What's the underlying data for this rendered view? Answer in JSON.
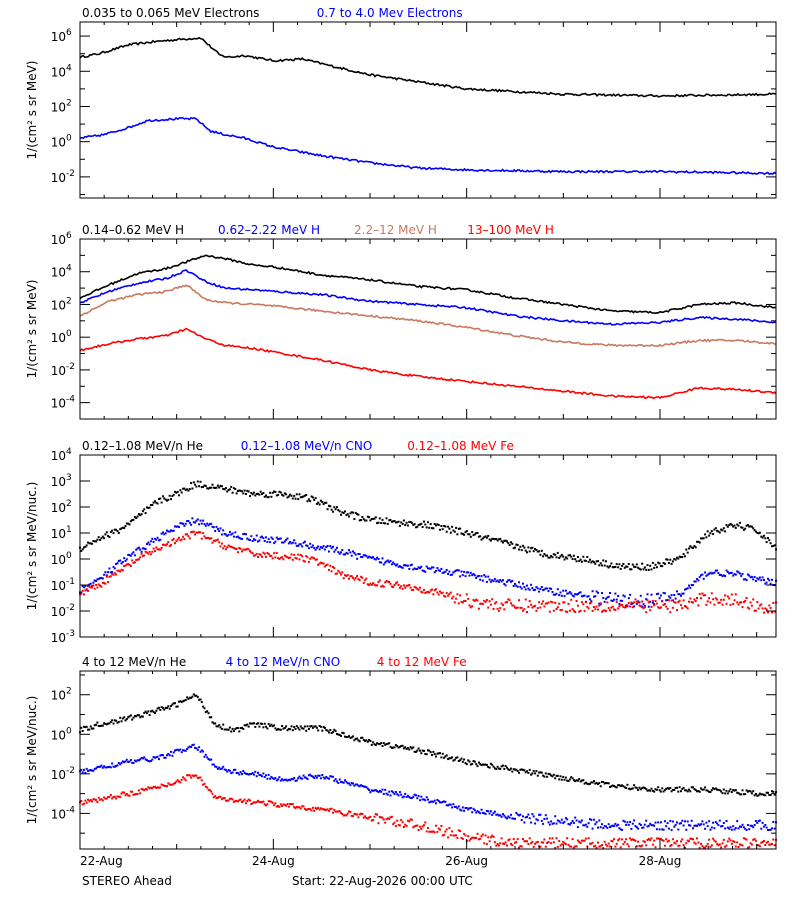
{
  "colors": {
    "black": "#000000",
    "blue": "#0000ff",
    "salmon": "#c87a5f",
    "red": "#ff0000"
  },
  "x_axis": {
    "tick_labels": [
      "22-Aug",
      "24-Aug",
      "26-Aug",
      "28-Aug"
    ],
    "tick_days": [
      0,
      2,
      4,
      6
    ],
    "range_days": [
      0,
      7.2
    ]
  },
  "footer": {
    "spacecraft": "STEREO Ahead",
    "start": "Start: 22-Aug-2026 00:00 UTC"
  },
  "chart_data": [
    {
      "type": "scatter",
      "id": "electrons",
      "ylabel": "1/(cm² s sr MeV)",
      "ylim_exp": [
        -3.2,
        6.8
      ],
      "tick_exps": [
        -2,
        0,
        2,
        4,
        6
      ],
      "tick_labels": [
        "10",
        "10",
        "10",
        "10",
        "10"
      ],
      "tick_sups": [
        "-2",
        "0",
        "2",
        "4",
        "6"
      ],
      "series": [
        {
          "name": "0.035 to 0.065 MeV Electrons",
          "color": "black",
          "style": "line",
          "x": [
            0,
            0.2,
            0.5,
            0.8,
            1.0,
            1.25,
            1.35,
            1.45,
            1.55,
            1.7,
            2.0,
            2.3,
            2.6,
            3.0,
            3.5,
            4.0,
            5.0,
            6.0,
            7.2
          ],
          "y_exp": [
            4.8,
            5.0,
            5.5,
            5.7,
            5.8,
            5.9,
            5.4,
            4.9,
            4.8,
            4.9,
            4.6,
            4.7,
            4.3,
            3.8,
            3.4,
            3.0,
            2.7,
            2.6,
            2.7
          ]
        },
        {
          "name": "0.7 to 4.0 Mev Electrons",
          "color": "blue",
          "style": "line",
          "x": [
            0,
            0.25,
            0.5,
            0.7,
            1.0,
            1.2,
            1.35,
            1.5,
            1.7,
            2.0,
            2.5,
            3.0,
            3.5,
            4.0,
            5.0,
            6.0,
            7.2
          ],
          "y_exp": [
            0.2,
            0.4,
            0.8,
            1.2,
            1.3,
            1.3,
            0.6,
            0.4,
            0.2,
            -0.3,
            -0.8,
            -1.2,
            -1.5,
            -1.6,
            -1.7,
            -1.7,
            -1.8
          ]
        }
      ]
    },
    {
      "type": "scatter",
      "id": "protons",
      "ylabel": "1/(cm² s sr MeV)",
      "ylim_exp": [
        -5,
        6
      ],
      "tick_exps": [
        -4,
        -2,
        0,
        2,
        4,
        6
      ],
      "tick_labels": [
        "10",
        "10",
        "10",
        "10",
        "10",
        "10"
      ],
      "tick_sups": [
        "-4",
        "-2",
        "0",
        "2",
        "4",
        "6"
      ],
      "series": [
        {
          "name": "0.14–0.62 MeV H",
          "color": "black",
          "style": "line",
          "x": [
            0,
            0.3,
            0.6,
            0.9,
            1.1,
            1.3,
            1.5,
            1.8,
            2.0,
            2.5,
            3.0,
            3.5,
            4.0,
            4.5,
            5.0,
            5.5,
            6.0,
            6.4,
            6.8,
            7.2
          ],
          "y_exp": [
            2.4,
            3.2,
            3.9,
            4.2,
            4.6,
            5.0,
            4.8,
            4.4,
            4.3,
            3.8,
            3.5,
            3.1,
            2.9,
            2.4,
            2.0,
            1.6,
            1.5,
            2.0,
            2.1,
            1.8
          ]
        },
        {
          "name": "0.62–2.22 MeV H",
          "color": "blue",
          "style": "line",
          "x": [
            0,
            0.3,
            0.6,
            0.9,
            1.1,
            1.3,
            1.5,
            1.8,
            2.0,
            2.5,
            3.0,
            3.5,
            4.0,
            4.5,
            5.0,
            5.5,
            6.0,
            6.4,
            6.8,
            7.2
          ],
          "y_exp": [
            2.1,
            2.8,
            3.3,
            3.6,
            4.1,
            3.4,
            3.0,
            2.9,
            2.8,
            2.6,
            2.2,
            2.0,
            1.8,
            1.3,
            1.0,
            0.8,
            0.9,
            1.2,
            1.1,
            0.9
          ]
        },
        {
          "name": "2.2–12 MeV H",
          "color": "salmon",
          "style": "line",
          "x": [
            0,
            0.3,
            0.6,
            0.9,
            1.1,
            1.3,
            1.5,
            1.8,
            2.0,
            2.5,
            3.0,
            3.5,
            4.0,
            4.5,
            5.0,
            5.5,
            6.0,
            6.4,
            6.8,
            7.2
          ],
          "y_exp": [
            1.3,
            2.2,
            2.6,
            2.8,
            3.2,
            2.3,
            2.1,
            2.0,
            1.9,
            1.6,
            1.3,
            1.0,
            0.6,
            0.1,
            -0.3,
            -0.5,
            -0.5,
            -0.2,
            -0.2,
            -0.4
          ]
        },
        {
          "name": "13–100 MeV H",
          "color": "red",
          "style": "line",
          "x": [
            0,
            0.3,
            0.6,
            0.9,
            1.1,
            1.3,
            1.5,
            1.8,
            2.0,
            2.5,
            3.0,
            3.5,
            4.0,
            4.5,
            5.0,
            5.5,
            6.0,
            6.4,
            6.8,
            7.2
          ],
          "y_exp": [
            -0.8,
            -0.4,
            -0.1,
            0.1,
            0.5,
            -0.1,
            -0.5,
            -0.7,
            -0.9,
            -1.4,
            -2.0,
            -2.4,
            -2.7,
            -3.0,
            -3.3,
            -3.6,
            -3.7,
            -3.1,
            -3.2,
            -3.4
          ]
        }
      ]
    },
    {
      "type": "scatter",
      "id": "he-cno-fe-low",
      "ylabel": "1/(cm² s sr MeV/nuc.)",
      "ylim_exp": [
        -3,
        4
      ],
      "tick_exps": [
        -3,
        -2,
        -1,
        0,
        1,
        2,
        3,
        4
      ],
      "tick_labels": [
        "10",
        "10",
        "10",
        "10",
        "10",
        "10",
        "10",
        "10"
      ],
      "tick_sups": [
        "-3",
        "-2",
        "-1",
        "0",
        "1",
        "2",
        "3",
        "4"
      ],
      "series": [
        {
          "name": "0.12–1.08 MeV/n He",
          "color": "black",
          "style": "dots",
          "x": [
            0,
            0.2,
            0.4,
            0.6,
            0.8,
            1.0,
            1.2,
            1.5,
            1.8,
            2.1,
            2.4,
            2.7,
            3.0,
            3.3,
            3.6,
            4.0,
            4.4,
            4.8,
            5.2,
            5.6,
            5.9,
            6.2,
            6.5,
            6.8,
            7.0,
            7.2
          ],
          "y_exp": [
            0.4,
            0.8,
            1.1,
            1.6,
            2.2,
            2.5,
            2.9,
            2.7,
            2.5,
            2.5,
            2.3,
            1.8,
            1.5,
            1.4,
            1.3,
            1.0,
            0.6,
            0.2,
            0.0,
            -0.3,
            -0.3,
            0.0,
            1.0,
            1.3,
            1.1,
            0.4
          ]
        },
        {
          "name": "0.12–1.08 MeV/n CNO",
          "color": "blue",
          "style": "dots",
          "x": [
            0,
            0.2,
            0.4,
            0.6,
            0.8,
            1.0,
            1.2,
            1.5,
            1.8,
            2.1,
            2.4,
            2.7,
            3.0,
            3.3,
            3.6,
            4.0,
            4.4,
            4.8,
            5.2,
            5.6,
            5.9,
            6.2,
            6.5,
            6.8,
            7.0,
            7.2
          ],
          "y_exp": [
            -1.2,
            -0.8,
            -0.2,
            0.3,
            0.8,
            1.2,
            1.5,
            1.0,
            0.8,
            0.7,
            0.5,
            0.3,
            0.0,
            -0.2,
            -0.4,
            -0.6,
            -0.9,
            -1.2,
            -1.4,
            -1.6,
            -1.6,
            -1.4,
            -0.5,
            -0.6,
            -0.8,
            -0.9
          ]
        },
        {
          "name": "0.12–1.08 MeV Fe",
          "color": "red",
          "style": "dots",
          "x": [
            0,
            0.2,
            0.4,
            0.6,
            0.8,
            1.0,
            1.2,
            1.5,
            1.8,
            2.1,
            2.4,
            2.7,
            3.0,
            3.3,
            3.6,
            4.0,
            4.4,
            4.8,
            5.2,
            5.6,
            5.9,
            6.2,
            6.5,
            6.8,
            7.0,
            7.2
          ],
          "y_exp": [
            -1.3,
            -1.0,
            -0.5,
            0.0,
            0.4,
            0.7,
            1.0,
            0.5,
            0.2,
            0.1,
            0.0,
            -0.6,
            -0.9,
            -1.0,
            -1.2,
            -1.6,
            -1.8,
            -1.8,
            -1.8,
            -1.8,
            -1.8,
            -1.8,
            -1.5,
            -1.6,
            -1.8,
            -1.9
          ]
        }
      ]
    },
    {
      "type": "scatter",
      "id": "he-cno-fe-high",
      "ylabel": "1/(cm² s sr MeV/nuc.)",
      "ylim_exp": [
        -5.8,
        3.2
      ],
      "tick_exps": [
        -4,
        -2,
        0,
        2
      ],
      "tick_labels": [
        "10",
        "10",
        "10",
        "10"
      ],
      "tick_sups": [
        "-4",
        "-2",
        "0",
        "2"
      ],
      "series": [
        {
          "name": "4 to 12 MeV/n He",
          "color": "black",
          "style": "dots",
          "x": [
            0,
            0.2,
            0.5,
            0.8,
            1.0,
            1.2,
            1.4,
            1.6,
            1.8,
            2.1,
            2.5,
            3.0,
            3.5,
            4.0,
            4.5,
            5.0,
            5.5,
            6.0,
            6.5,
            7.0,
            7.2
          ],
          "y_exp": [
            0.2,
            0.5,
            0.8,
            1.2,
            1.5,
            2.0,
            0.5,
            0.2,
            0.5,
            0.3,
            0.3,
            -0.4,
            -0.8,
            -1.4,
            -1.8,
            -2.2,
            -2.6,
            -2.8,
            -2.8,
            -3.0,
            -3.0
          ]
        },
        {
          "name": "4 to 12 MeV/n CNO",
          "color": "blue",
          "style": "dots",
          "x": [
            0,
            0.2,
            0.5,
            0.8,
            1.0,
            1.2,
            1.4,
            1.6,
            1.8,
            2.1,
            2.5,
            3.0,
            3.5,
            4.0,
            4.5,
            5.0,
            5.5,
            6.0,
            6.5,
            7.0,
            7.2
          ],
          "y_exp": [
            -1.9,
            -1.7,
            -1.4,
            -1.2,
            -0.9,
            -0.6,
            -1.6,
            -1.9,
            -2.0,
            -2.3,
            -2.1,
            -2.8,
            -3.2,
            -3.8,
            -4.2,
            -4.4,
            -4.6,
            -4.6,
            -4.6,
            -4.6,
            -4.6
          ]
        },
        {
          "name": "4 to 12 MeV Fe",
          "color": "red",
          "style": "dots",
          "x": [
            0,
            0.2,
            0.5,
            0.8,
            1.0,
            1.2,
            1.4,
            1.6,
            1.8,
            2.1,
            2.5,
            3.0,
            3.5,
            4.0,
            4.5,
            5.0,
            5.5,
            6.0,
            6.5,
            7.0,
            7.2
          ],
          "y_exp": [
            -3.5,
            -3.3,
            -3.0,
            -2.7,
            -2.4,
            -2.0,
            -3.2,
            -3.4,
            -3.4,
            -3.6,
            -3.8,
            -4.2,
            -4.6,
            -5.2,
            -5.5,
            -5.5,
            -5.5,
            -5.5,
            -5.5,
            -5.5,
            -5.5
          ]
        }
      ]
    }
  ]
}
